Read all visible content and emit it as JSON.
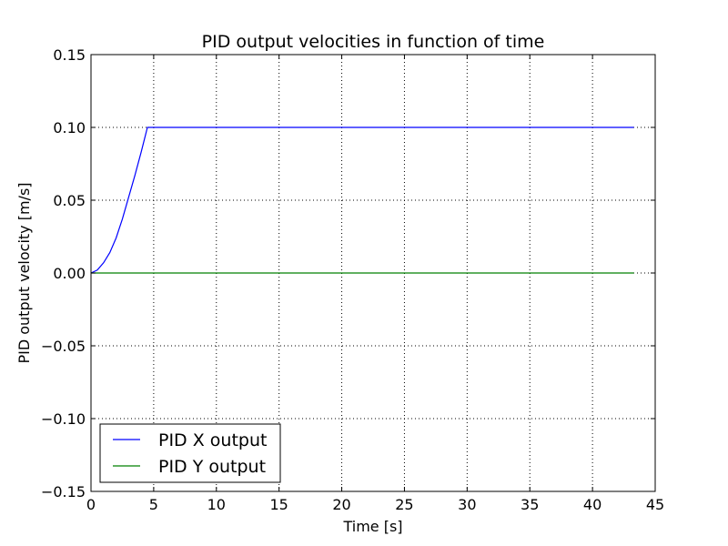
{
  "chart_data": {
    "type": "line",
    "title": "PID output velocities in function of time",
    "xlabel": "Time [s]",
    "ylabel": "PID output velocity [m/s]",
    "xlim": [
      0,
      45
    ],
    "ylim": [
      -0.15,
      0.15
    ],
    "xticks": [
      0,
      5,
      10,
      15,
      20,
      25,
      30,
      35,
      40,
      45
    ],
    "xtick_labels": [
      "0",
      "5",
      "10",
      "15",
      "20",
      "25",
      "30",
      "35",
      "40",
      "45"
    ],
    "yticks": [
      -0.15,
      -0.1,
      -0.05,
      0.0,
      0.05,
      0.1,
      0.15
    ],
    "ytick_labels": [
      "−0.15",
      "−0.10",
      "−0.05",
      "0.00",
      "0.05",
      "0.10",
      "0.15"
    ],
    "grid": true,
    "legend_position": "lower-left",
    "series": [
      {
        "name": "PID X output",
        "color": "#0000ff",
        "x": [
          0,
          0.5,
          1.0,
          1.5,
          2.0,
          2.5,
          3.0,
          3.5,
          4.0,
          4.5,
          4.7,
          43.3
        ],
        "y": [
          0,
          0.002,
          0.007,
          0.014,
          0.024,
          0.037,
          0.052,
          0.067,
          0.083,
          0.1,
          0.1,
          0.1
        ]
      },
      {
        "name": "PID Y output",
        "color": "#008000",
        "x": [
          0,
          43.3
        ],
        "y": [
          0,
          0
        ]
      }
    ]
  }
}
